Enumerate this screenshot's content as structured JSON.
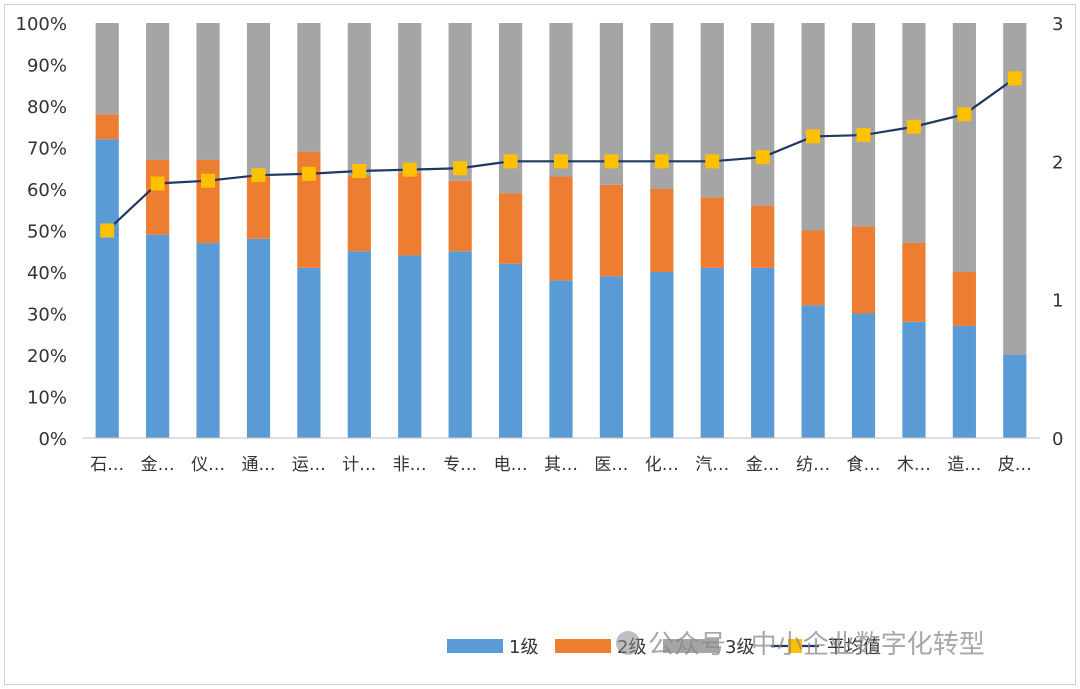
{
  "chart_data": {
    "type": "bar",
    "stacked": true,
    "stack_normalized": true,
    "categories": [
      "石…",
      "金…",
      "仪…",
      "通…",
      "运…",
      "计…",
      "非…",
      "专…",
      "电…",
      "其…",
      "医…",
      "化…",
      "汽…",
      "金…",
      "纺…",
      "食…",
      "木…",
      "造…",
      "皮…"
    ],
    "series": [
      {
        "name": "1级",
        "axis": "left",
        "color": "#5b9bd5",
        "values": [
          72,
          49,
          47,
          48,
          41,
          45,
          44,
          45,
          42,
          38,
          39,
          40,
          41,
          41,
          32,
          30,
          28,
          27,
          20
        ]
      },
      {
        "name": "2级",
        "axis": "left",
        "color": "#ed7d31",
        "values": [
          6,
          18,
          20,
          15,
          28,
          18,
          20,
          17,
          17,
          25,
          22,
          20,
          17,
          15,
          18,
          21,
          19,
          13,
          0
        ]
      },
      {
        "name": "3级",
        "axis": "left",
        "color": "#a5a5a5",
        "values": [
          22,
          33,
          33,
          37,
          31,
          37,
          36,
          38,
          41,
          37,
          39,
          40,
          42,
          44,
          50,
          49,
          53,
          60,
          80
        ]
      },
      {
        "name": "平均值",
        "axis": "right",
        "type": "line",
        "line_color": "#1f3864",
        "marker_color": "#ffc000",
        "values": [
          1.5,
          1.84,
          1.86,
          1.9,
          1.91,
          1.93,
          1.94,
          1.95,
          2.0,
          2.0,
          2.0,
          2.0,
          2.0,
          2.03,
          2.18,
          2.19,
          2.25,
          2.34,
          2.6
        ]
      }
    ],
    "y_left": {
      "ticks": [
        "0%",
        "10%",
        "20%",
        "30%",
        "40%",
        "50%",
        "60%",
        "70%",
        "80%",
        "90%",
        "100%"
      ],
      "ylim": [
        0,
        100
      ]
    },
    "y_right": {
      "ticks": [
        "0",
        "1",
        "2",
        "3"
      ],
      "ylim": [
        0,
        3
      ]
    },
    "legend": {
      "position": "bottom-right"
    },
    "grid": false
  },
  "watermark": {
    "text": "公众号 · 中小企业数字化转型"
  }
}
